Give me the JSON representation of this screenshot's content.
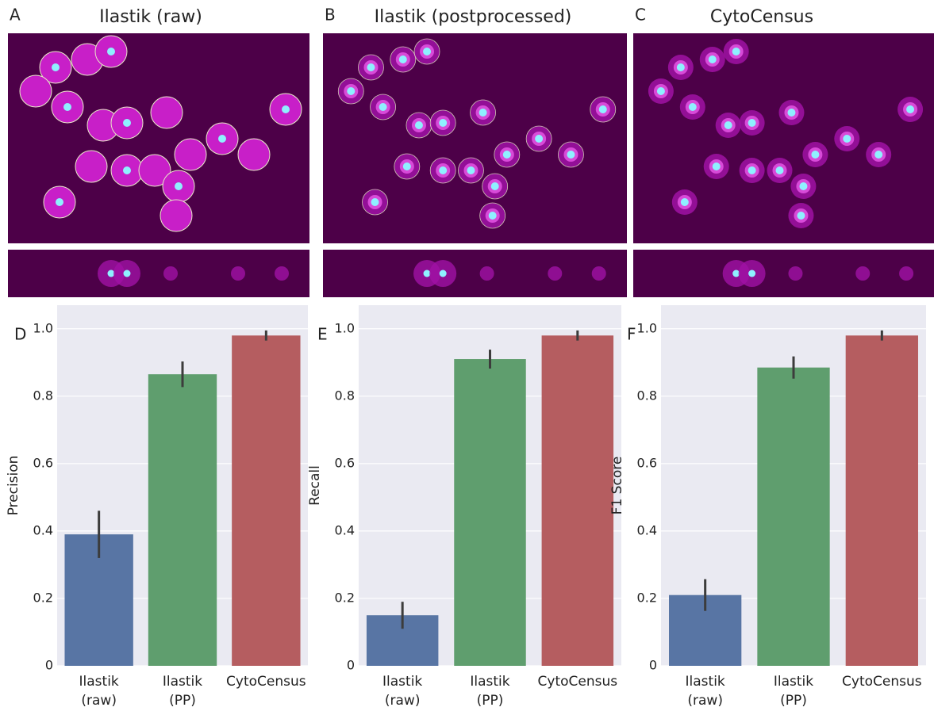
{
  "panels": [
    {
      "letter": "A",
      "title": "Ilastik (raw)"
    },
    {
      "letter": "B",
      "title": "Ilastik (postprocessed)"
    },
    {
      "letter": "C",
      "title": "CytoCensus"
    }
  ],
  "chart_data": [
    {
      "type": "bar",
      "panel_label": "D",
      "ylabel": "Precision",
      "categories": [
        [
          "Ilastik",
          "(raw)"
        ],
        [
          "Ilastik",
          "(PP)"
        ],
        [
          "CytoCensus"
        ]
      ],
      "values": [
        0.39,
        0.865,
        0.98
      ],
      "errors": [
        0.07,
        0.038,
        0.015
      ],
      "colors": [
        "#5875a4",
        "#5f9e6e",
        "#b55d60"
      ],
      "ylim": [
        0,
        1.07
      ],
      "yticks": [
        0,
        0.2,
        0.4,
        0.6,
        0.8,
        {
          "value": 1,
          "label": "1.0"
        }
      ],
      "grid": true
    },
    {
      "type": "bar",
      "panel_label": "E",
      "ylabel": "Recall",
      "categories": [
        [
          "Ilastik",
          "(raw)"
        ],
        [
          "Ilastik",
          "(PP)"
        ],
        [
          "CytoCensus"
        ]
      ],
      "values": [
        0.15,
        0.91,
        0.98
      ],
      "errors": [
        0.04,
        0.028,
        0.015
      ],
      "colors": [
        "#5875a4",
        "#5f9e6e",
        "#b55d60"
      ],
      "ylim": [
        0,
        1.07
      ],
      "yticks": [
        0,
        0.2,
        0.4,
        0.6,
        0.8,
        {
          "value": 1,
          "label": "1.0"
        }
      ],
      "grid": true
    },
    {
      "type": "bar",
      "panel_label": "F",
      "ylabel": "F1 Score",
      "categories": [
        [
          "Ilastik",
          "(raw)"
        ],
        [
          "Ilastik",
          "(PP)"
        ],
        [
          "CytoCensus"
        ]
      ],
      "values": [
        0.21,
        0.885,
        0.98
      ],
      "errors": [
        0.047,
        0.033,
        0.015
      ],
      "colors": [
        "#5875a4",
        "#5f9e6e",
        "#b55d60"
      ],
      "ylim": [
        0,
        1.07
      ],
      "yticks": [
        0,
        0.2,
        0.4,
        0.6,
        0.8,
        {
          "value": 1,
          "label": "1.0"
        }
      ],
      "grid": true
    }
  ]
}
